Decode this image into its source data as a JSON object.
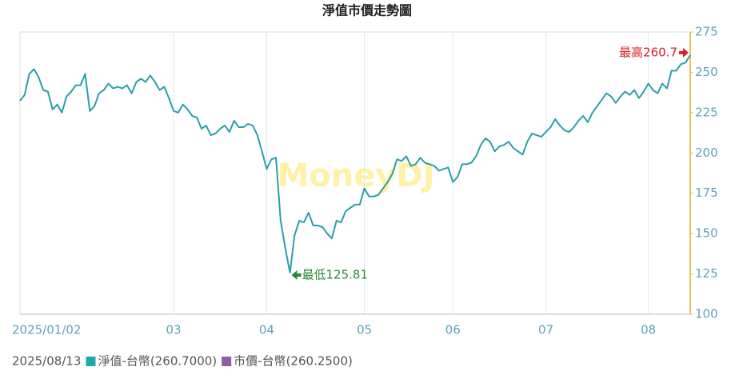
{
  "chart_data": {
    "type": "line",
    "title": "淨值市價走勢圖",
    "watermark": "MoneyDJ",
    "categories": [
      "2025/01/02",
      null,
      null,
      null,
      null,
      null,
      null,
      null,
      null,
      null,
      null,
      null,
      null,
      null,
      null,
      null,
      null,
      null,
      null,
      null,
      null,
      null,
      null,
      null,
      null,
      null,
      null,
      null,
      null,
      null,
      null,
      null,
      null,
      "03",
      null,
      null,
      null,
      null,
      null,
      null,
      null,
      null,
      null,
      null,
      null,
      null,
      null,
      null,
      null,
      null,
      null,
      null,
      null,
      "04",
      null,
      null,
      null,
      null,
      null,
      null,
      null,
      null,
      null,
      null,
      null,
      null,
      null,
      null,
      null,
      null,
      null,
      null,
      null,
      null,
      "05",
      null,
      null,
      null,
      null,
      null,
      null,
      null,
      null,
      null,
      null,
      null,
      null,
      null,
      null,
      null,
      null,
      null,
      null,
      "06",
      null,
      null,
      null,
      null,
      null,
      null,
      null,
      null,
      null,
      null,
      null,
      null,
      null,
      null,
      null,
      null,
      null,
      null,
      null,
      "07",
      null,
      null,
      null,
      null,
      null,
      null,
      null,
      null,
      null,
      null,
      null,
      null,
      null,
      null,
      null,
      null,
      null,
      null,
      null,
      null,
      null,
      "08",
      null,
      null,
      null,
      null,
      null,
      null,
      null,
      null,
      null
    ],
    "series": [
      {
        "name": "淨值-台幣(260.7000)",
        "color": "#2a9fa8",
        "values": [
          232.4,
          236,
          249,
          252,
          247,
          239,
          238,
          227,
          230,
          225,
          235,
          238,
          242,
          242,
          249,
          226,
          229,
          237,
          239,
          243,
          240,
          241,
          240,
          242,
          237,
          244,
          246,
          244,
          248,
          244,
          239,
          241,
          234,
          226,
          225,
          230,
          227,
          223,
          222,
          215,
          217,
          211,
          212,
          215,
          217,
          213,
          220,
          216,
          216,
          218,
          217,
          211,
          201,
          190,
          196,
          197,
          158,
          141,
          125.81,
          149,
          158,
          157,
          163,
          155,
          155,
          154,
          150,
          147,
          158,
          157,
          164,
          166,
          168,
          168,
          178,
          173,
          173,
          174,
          178,
          182,
          187,
          196,
          195,
          198,
          192,
          193,
          197,
          194,
          193,
          192,
          189,
          190,
          191,
          182,
          185,
          193,
          193,
          194,
          198,
          205,
          209,
          207,
          201,
          204,
          205,
          207,
          203,
          201,
          199,
          207,
          212,
          211,
          210,
          213,
          216,
          221,
          217,
          214,
          213,
          216,
          220,
          223,
          219,
          225,
          229,
          233,
          237,
          235,
          231,
          235,
          238,
          236,
          239,
          234,
          238,
          243,
          239,
          237,
          243,
          240,
          251,
          251,
          255,
          256,
          260.7
        ]
      }
    ],
    "legend_date": "2025/08/13",
    "legend": [
      {
        "name": "淨值-台幣(260.7000)",
        "color": "#1aaba8"
      },
      {
        "name": "市價-台幣(260.2500)",
        "color": "#8e5ea2"
      }
    ],
    "annotations": {
      "max": "最高260.7",
      "min": "最低125.81"
    },
    "ylim": [
      100,
      275
    ],
    "yticks": [
      100,
      125,
      150,
      175,
      200,
      225,
      250,
      275
    ],
    "y_axis_side": "right",
    "grid": "x"
  }
}
